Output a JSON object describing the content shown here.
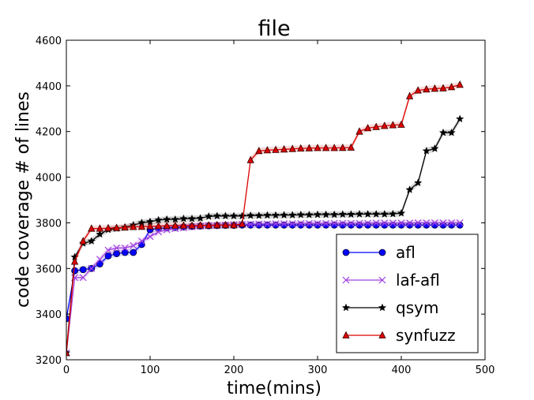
{
  "chart_data": {
    "type": "line",
    "title": "file",
    "xlabel": "time(mins)",
    "ylabel": "code coverage # of lines",
    "xlim": [
      0,
      500
    ],
    "ylim": [
      3200,
      4600
    ],
    "xticks": [
      "0",
      "100",
      "200",
      "300",
      "400",
      "500"
    ],
    "yticks": [
      "3200",
      "3400",
      "3600",
      "3800",
      "4000",
      "4200",
      "4400",
      "4600"
    ],
    "grid": false,
    "legend_position": "lower-right",
    "x": [
      0,
      10,
      20,
      30,
      40,
      50,
      60,
      70,
      80,
      90,
      100,
      110,
      120,
      130,
      140,
      150,
      160,
      170,
      180,
      190,
      200,
      210,
      220,
      230,
      240,
      250,
      260,
      270,
      280,
      290,
      300,
      310,
      320,
      330,
      340,
      350,
      360,
      370,
      380,
      390,
      400,
      410,
      420,
      430,
      440,
      450,
      460,
      470
    ],
    "series": [
      {
        "name": "afl",
        "color": "#0000ff",
        "marker": "circle",
        "values": [
          3380,
          3590,
          3595,
          3600,
          3620,
          3655,
          3665,
          3670,
          3670,
          3705,
          3770,
          3775,
          3778,
          3780,
          3782,
          3784,
          3786,
          3787,
          3788,
          3789,
          3789,
          3790,
          3790,
          3790,
          3790,
          3790,
          3790,
          3790,
          3790,
          3790,
          3790,
          3790,
          3790,
          3790,
          3790,
          3790,
          3790,
          3790,
          3790,
          3790,
          3790,
          3790,
          3790,
          3790,
          3790,
          3790,
          3790,
          3790
        ]
      },
      {
        "name": "laf-afl",
        "color": "#a040e0",
        "marker": "x",
        "values": [
          3230,
          3560,
          3560,
          3600,
          3640,
          3680,
          3690,
          3690,
          3700,
          3720,
          3740,
          3760,
          3770,
          3775,
          3778,
          3782,
          3785,
          3787,
          3788,
          3790,
          3792,
          3793,
          3794,
          3795,
          3795,
          3796,
          3796,
          3796,
          3797,
          3797,
          3797,
          3797,
          3798,
          3798,
          3798,
          3798,
          3798,
          3799,
          3799,
          3799,
          3799,
          3799,
          3800,
          3800,
          3800,
          3800,
          3800,
          3800
        ]
      },
      {
        "name": "qsym",
        "color": "#000000",
        "marker": "star",
        "values": [
          3230,
          3650,
          3710,
          3720,
          3750,
          3770,
          3775,
          3780,
          3790,
          3800,
          3805,
          3812,
          3815,
          3815,
          3818,
          3818,
          3820,
          3828,
          3830,
          3830,
          3830,
          3830,
          3832,
          3832,
          3833,
          3833,
          3834,
          3834,
          3835,
          3835,
          3836,
          3836,
          3836,
          3837,
          3837,
          3838,
          3838,
          3838,
          3838,
          3839,
          3842,
          3945,
          3975,
          4115,
          4125,
          4195,
          4195,
          4255
        ]
      },
      {
        "name": "synfuzz",
        "color": "#dd0000",
        "marker": "triangle",
        "values": [
          3230,
          3630,
          3720,
          3775,
          3775,
          3777,
          3778,
          3780,
          3782,
          3783,
          3785,
          3786,
          3787,
          3788,
          3788,
          3788,
          3789,
          3789,
          3790,
          3790,
          3790,
          3795,
          4075,
          4115,
          4118,
          4120,
          4122,
          4124,
          4126,
          4127,
          4128,
          4128,
          4128,
          4129,
          4130,
          4200,
          4215,
          4220,
          4225,
          4228,
          4230,
          4355,
          4380,
          4385,
          4388,
          4390,
          4395,
          4405
        ]
      }
    ]
  }
}
